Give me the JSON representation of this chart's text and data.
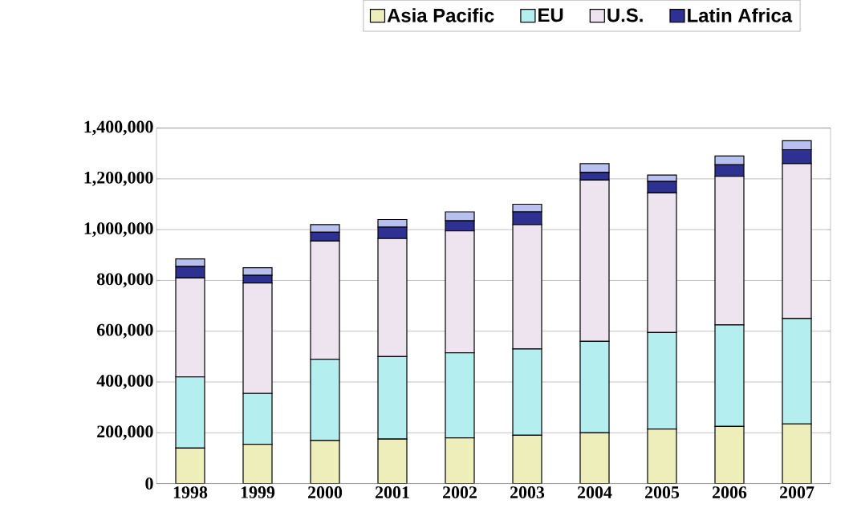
{
  "chart_data": {
    "type": "bar",
    "stacked": true,
    "categories": [
      "1998",
      "1999",
      "2000",
      "2001",
      "2002",
      "2003",
      "2004",
      "2005",
      "2006",
      "2007"
    ],
    "series": [
      {
        "name": "Asia Pacific",
        "color": "#eeeebb",
        "values": [
          140000,
          155000,
          170000,
          175000,
          180000,
          190000,
          200000,
          215000,
          225000,
          235000
        ]
      },
      {
        "name": "EU",
        "color": "#b4eeee",
        "values": [
          280000,
          200000,
          320000,
          325000,
          335000,
          340000,
          360000,
          380000,
          400000,
          415000
        ]
      },
      {
        "name": "U.S.",
        "color": "#eee4f0",
        "values": [
          390000,
          435000,
          465000,
          465000,
          480000,
          490000,
          635000,
          550000,
          585000,
          610000
        ]
      },
      {
        "name": "Latin Africa",
        "color": "#2e3192",
        "values": [
          45000,
          30000,
          35000,
          45000,
          40000,
          50000,
          30000,
          45000,
          45000,
          55000
        ]
      },
      {
        "color": "#b8c0f0",
        "values": [
          30000,
          30000,
          30000,
          30000,
          35000,
          30000,
          35000,
          25000,
          35000,
          35000
        ]
      }
    ],
    "ylim": [
      0,
      1400000
    ],
    "yticks": [
      {
        "value": 0,
        "label": "0"
      },
      {
        "value": 200000,
        "label": "200,000"
      },
      {
        "value": 400000,
        "label": "400,000"
      },
      {
        "value": 600000,
        "label": "600,000"
      },
      {
        "value": 800000,
        "label": "800,000"
      },
      {
        "value": 1000000,
        "label": "1,000,000"
      },
      {
        "value": 1200000,
        "label": "1,200,000"
      },
      {
        "value": 1400000,
        "label": "1,400,000"
      }
    ],
    "grid": "y",
    "legend": "top"
  }
}
